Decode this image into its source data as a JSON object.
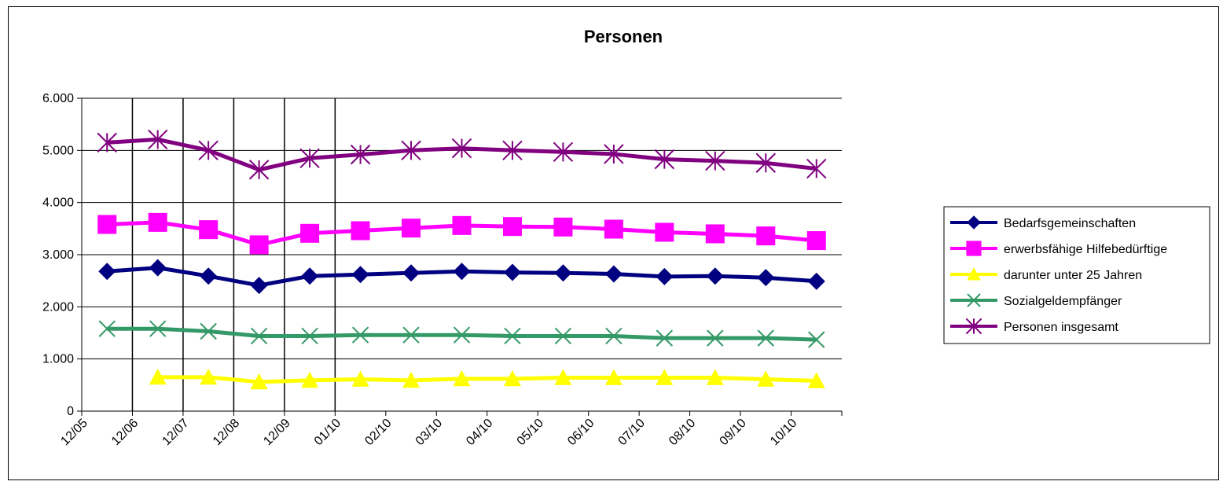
{
  "chart_data": {
    "type": "line",
    "title": "Personen",
    "xlabel": "",
    "ylabel": "",
    "categories": [
      "12/05",
      "12/06",
      "12/07",
      "12/08",
      "12/09",
      "01/10",
      "02/10",
      "03/10",
      "04/10",
      "05/10",
      "06/10",
      "07/10",
      "08/10",
      "09/10",
      "10/10"
    ],
    "ylim": [
      0,
      6000
    ],
    "yticks": [
      "0",
      "1.000",
      "2.000",
      "3.000",
      "4.000",
      "5.000",
      "6.000"
    ],
    "grid": true,
    "legend_position": "right",
    "series": [
      {
        "name": "Bedarfsgemeinschaften",
        "color": "#000080",
        "marker": "diamond",
        "values": [
          2680,
          2750,
          2590,
          2410,
          2590,
          2620,
          2650,
          2680,
          2660,
          2650,
          2630,
          2580,
          2590,
          2560,
          2490
        ]
      },
      {
        "name": "erwerbsfähige Hilfebedürftige",
        "color": "#FF00FF",
        "marker": "square",
        "values": [
          3580,
          3620,
          3480,
          3190,
          3410,
          3460,
          3510,
          3560,
          3540,
          3530,
          3490,
          3430,
          3400,
          3360,
          3270
        ]
      },
      {
        "name": "darunter unter 25 Jahren",
        "color": "#FFFF00",
        "marker": "triangle",
        "values": [
          null,
          650,
          650,
          560,
          590,
          610,
          590,
          620,
          620,
          640,
          640,
          640,
          640,
          610,
          580
        ]
      },
      {
        "name": "Sozialgeldempfänger",
        "color": "#339966",
        "marker": "x",
        "values": [
          1580,
          1580,
          1530,
          1440,
          1440,
          1460,
          1460,
          1460,
          1440,
          1440,
          1440,
          1400,
          1400,
          1400,
          1370
        ]
      },
      {
        "name": "Personen insgesamt",
        "color": "#800080",
        "marker": "star",
        "values": [
          5150,
          5210,
          5000,
          4630,
          4850,
          4920,
          5000,
          5040,
          5000,
          4970,
          4930,
          4830,
          4800,
          4760,
          4650
        ]
      }
    ]
  }
}
